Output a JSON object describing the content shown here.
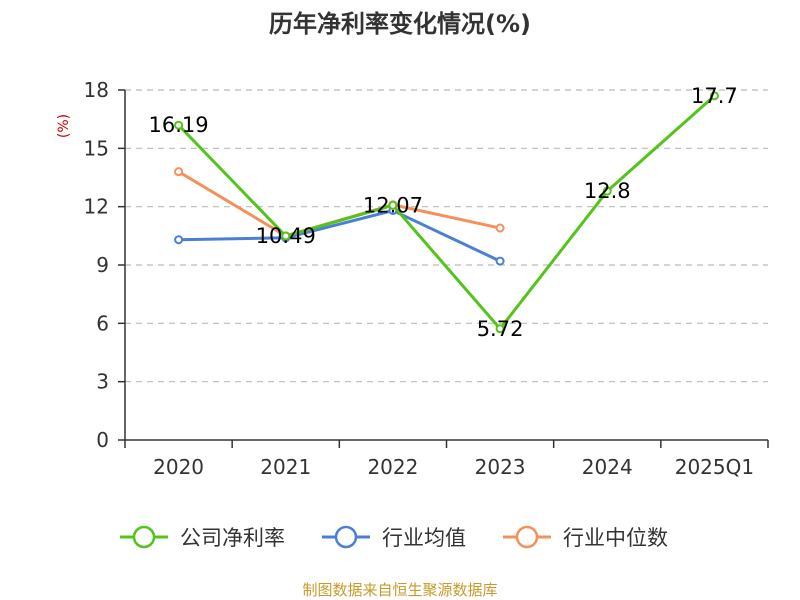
{
  "chart_data": {
    "type": "line",
    "title": "历年净利率变化情况(%)",
    "ylabel": "(%)",
    "xlabel": "",
    "categories": [
      "2020",
      "2021",
      "2022",
      "2023",
      "2024",
      "2025Q1"
    ],
    "ylim": [
      0,
      18
    ],
    "yticks": [
      "0",
      "3",
      "6",
      "9",
      "12",
      "15",
      "18"
    ],
    "grid": true,
    "legend_position": "bottom",
    "series": [
      {
        "name": "公司净利率",
        "color": "#52c41a",
        "values": [
          16.19,
          10.49,
          12.07,
          5.72,
          12.8,
          17.7
        ],
        "labels": [
          "16.19",
          "10.49",
          "12.07",
          "5.72",
          "12.8",
          "17.7"
        ]
      },
      {
        "name": "行业均值",
        "color": "#4a7fd4",
        "values": [
          10.3,
          10.4,
          11.8,
          9.2,
          null,
          null
        ]
      },
      {
        "name": "行业中位数",
        "color": "#f4915a",
        "values": [
          13.8,
          10.5,
          12.1,
          10.9,
          null,
          null
        ]
      }
    ]
  },
  "source": "制图数据来自恒生聚源数据库"
}
